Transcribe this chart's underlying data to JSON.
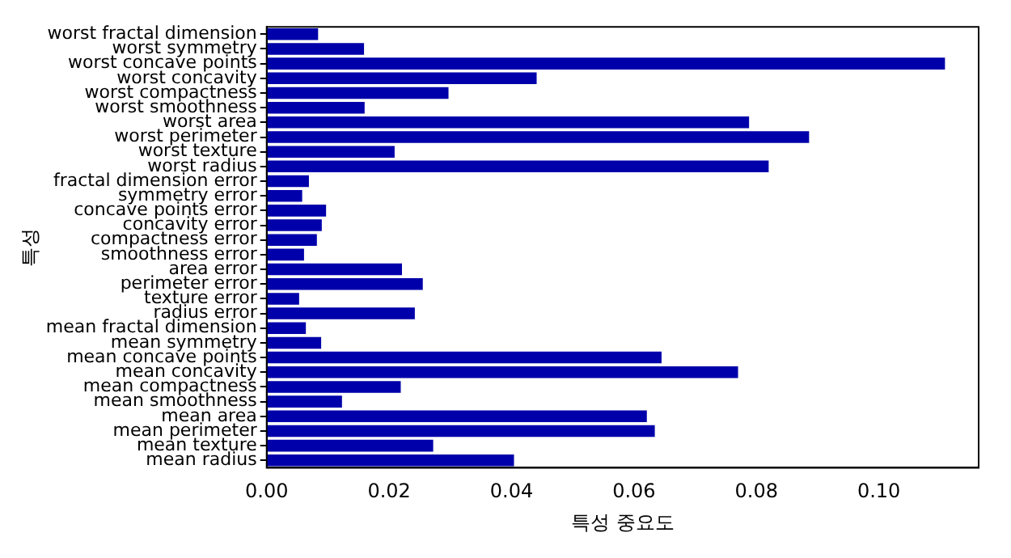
{
  "chart_data": {
    "type": "bar",
    "orientation": "horizontal",
    "xlabel": "특성 중요도",
    "ylabel": "특성",
    "categories": [
      "worst fractal dimension",
      "worst symmetry",
      "worst concave points",
      "worst concavity",
      "worst compactness",
      "worst smoothness",
      "worst area",
      "worst perimeter",
      "worst texture",
      "worst radius",
      "fractal dimension error",
      "symmetry error",
      "concave points error",
      "concavity error",
      "compactness error",
      "smoothness error",
      "area error",
      "perimeter error",
      "texture error",
      "radius error",
      "mean fractal dimension",
      "mean symmetry",
      "mean concave points",
      "mean concavity",
      "mean compactness",
      "mean smoothness",
      "mean area",
      "mean perimeter",
      "mean texture",
      "mean radius"
    ],
    "values": [
      0.0084,
      0.0159,
      0.1108,
      0.0441,
      0.0297,
      0.016,
      0.0788,
      0.0886,
      0.0209,
      0.082,
      0.0069,
      0.0058,
      0.0097,
      0.009,
      0.0082,
      0.0061,
      0.0221,
      0.0255,
      0.0053,
      0.0242,
      0.0064,
      0.0089,
      0.0645,
      0.077,
      0.0219,
      0.0123,
      0.0621,
      0.0634,
      0.0272,
      0.0404
    ],
    "color": "#0000aa",
    "xlim": [
      0,
      0.1163
    ],
    "xticks": [
      {
        "value": 0,
        "label": "0.00"
      },
      {
        "value": 0.02,
        "label": "0.02"
      },
      {
        "value": 0.04,
        "label": "0.04"
      },
      {
        "value": 0.06,
        "label": "0.06"
      },
      {
        "value": 0.08,
        "label": "0.08"
      },
      {
        "value": 0.1,
        "label": "0.10"
      }
    ],
    "grid": false,
    "legend": false
  }
}
